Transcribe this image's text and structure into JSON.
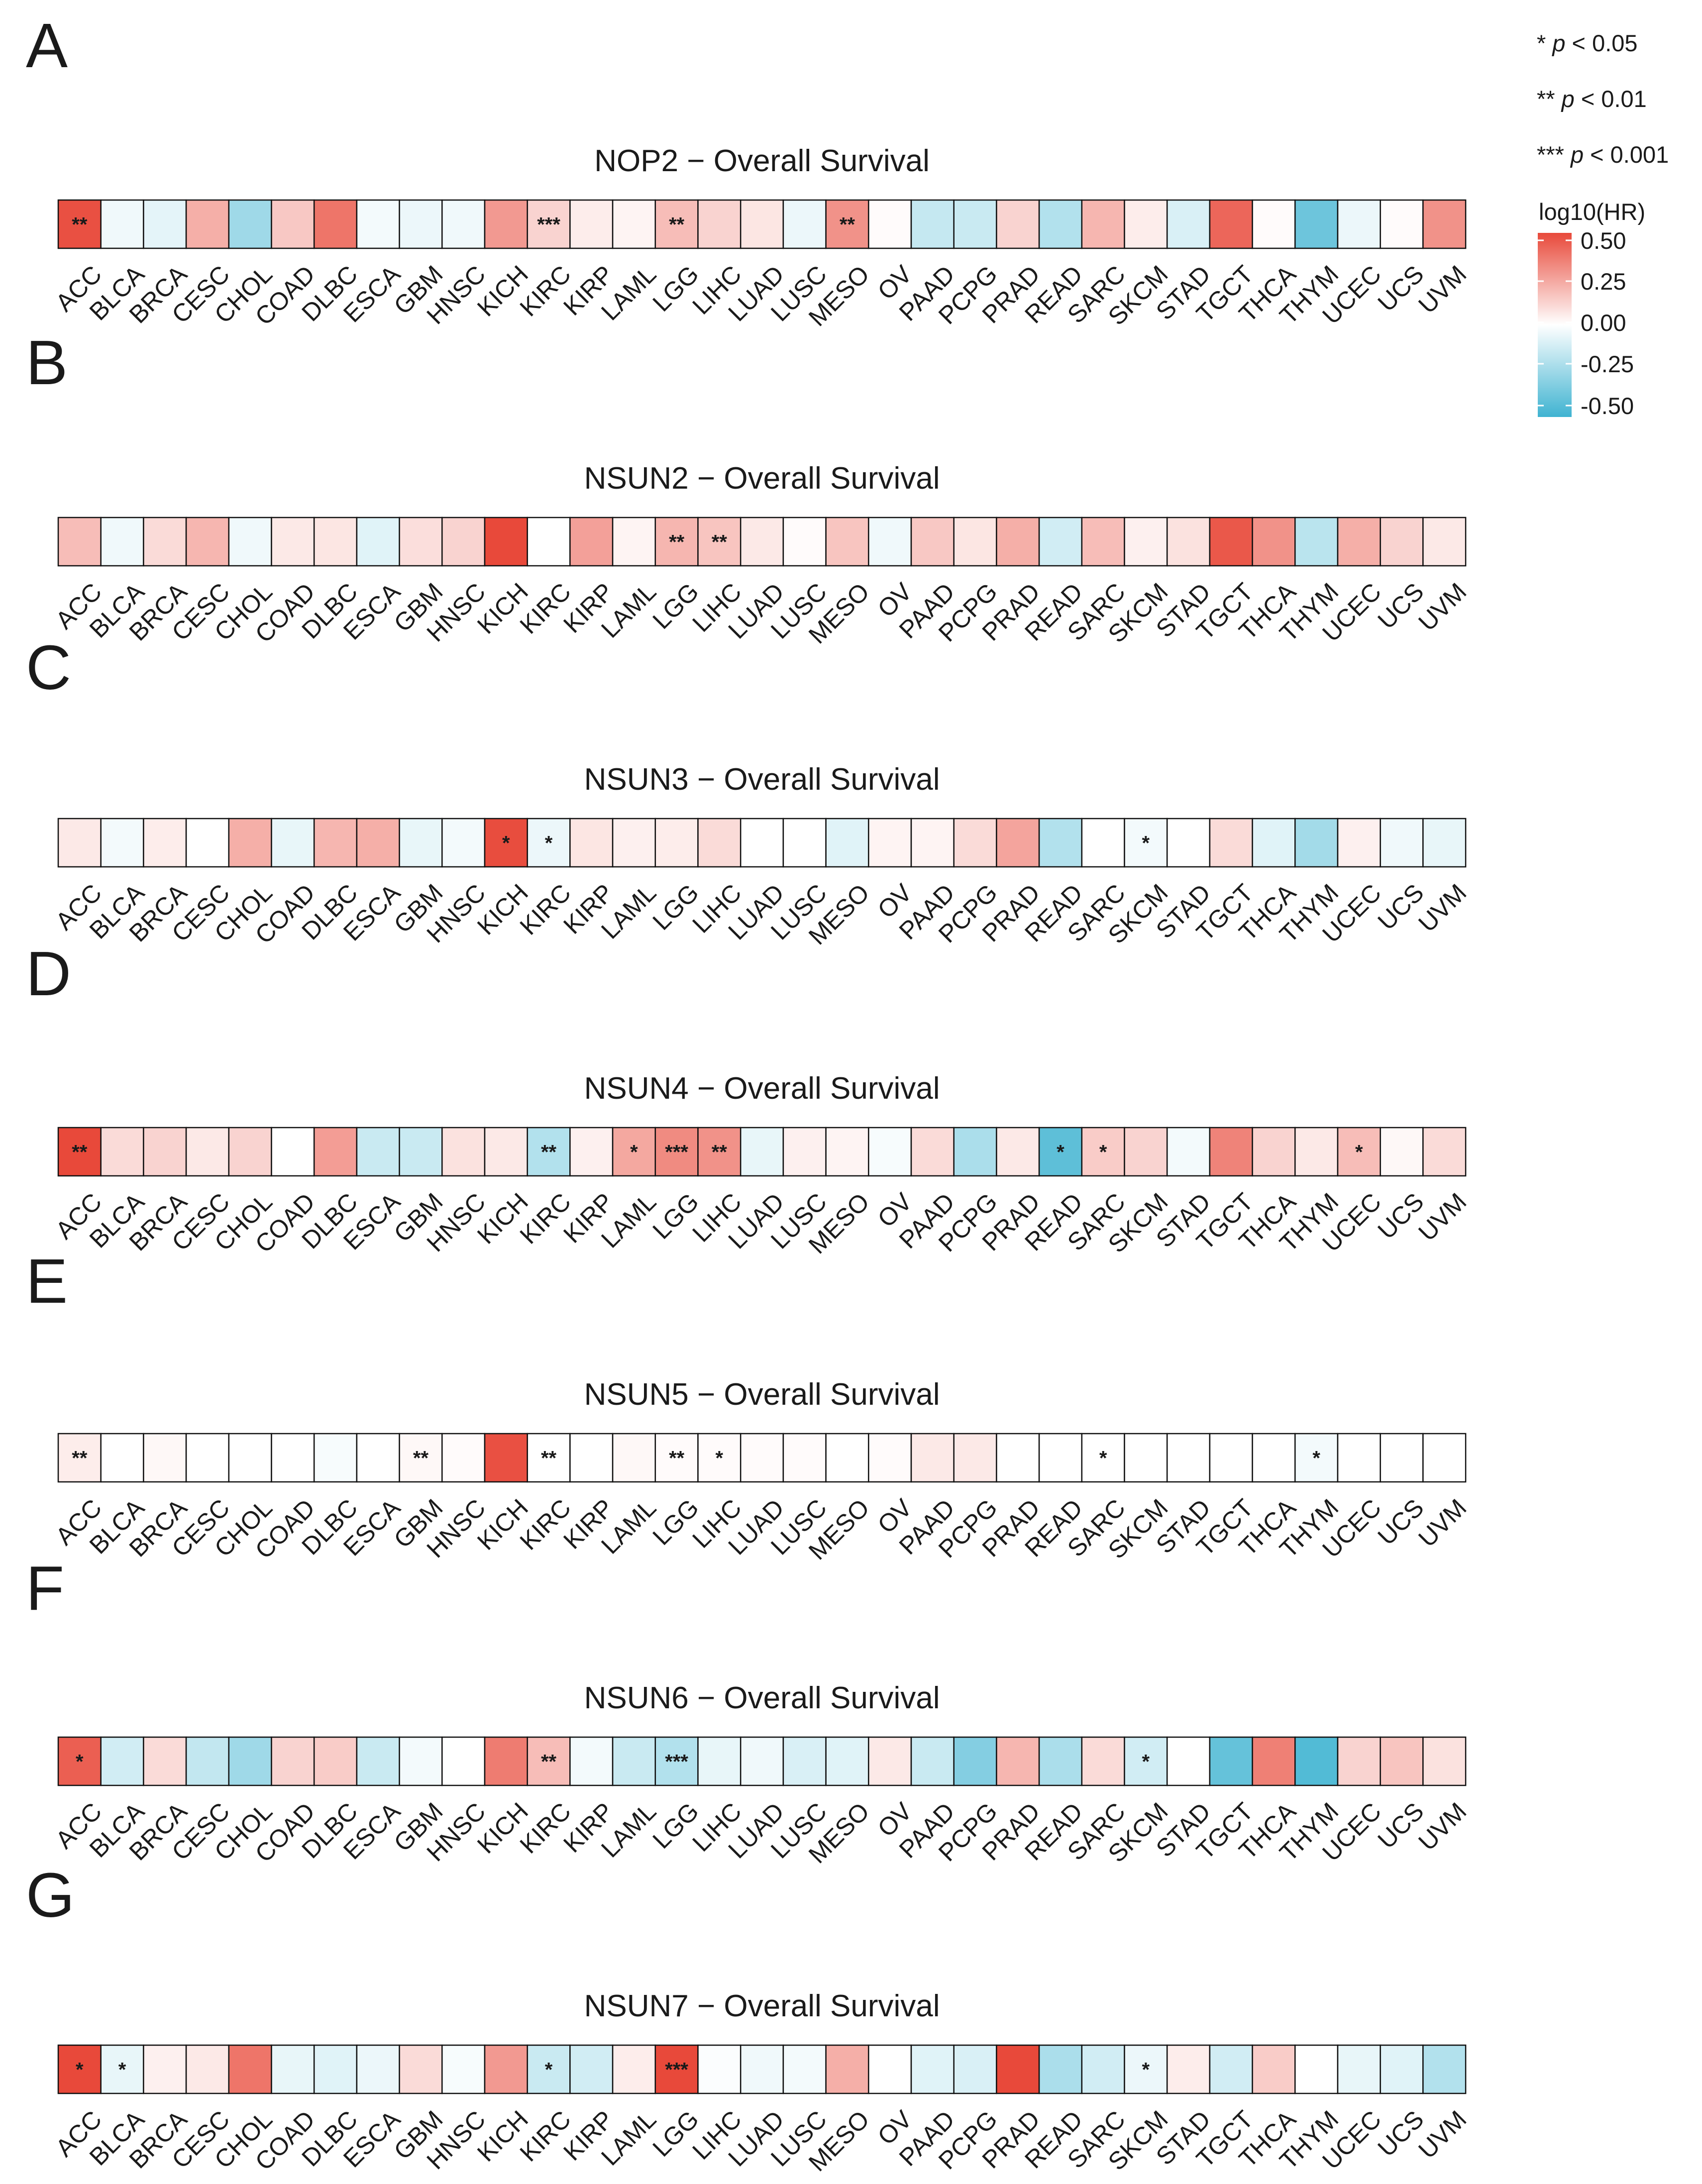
{
  "chart_data": {
    "type": "heatmap",
    "color_scale": {
      "low": "#3fb3d1",
      "mid": "#ffffff",
      "high": "#e8493a",
      "range": [
        -0.5,
        0.5
      ]
    },
    "legend": {
      "title": "log10(HR)",
      "ticks": [
        "0.50",
        "0.25",
        "0.00",
        "-0.25",
        "-0.50"
      ],
      "significance": [
        {
          "stars": "*",
          "label": "p",
          "threshold": "< 0.05"
        },
        {
          "stars": "**",
          "label": "p",
          "threshold": "< 0.01"
        },
        {
          "stars": "***",
          "label": "p",
          "threshold": "< 0.001"
        }
      ]
    },
    "cancers": [
      "ACC",
      "BLCA",
      "BRCA",
      "CESC",
      "CHOL",
      "COAD",
      "DLBC",
      "ESCA",
      "GBM",
      "HNSC",
      "KICH",
      "KIRC",
      "KIRP",
      "LAML",
      "LGG",
      "LIHC",
      "LUAD",
      "LUSC",
      "MESO",
      "OV",
      "PAAD",
      "PCPG",
      "PRAD",
      "READ",
      "SARC",
      "SKCM",
      "STAD",
      "TGCT",
      "THCA",
      "THYM",
      "UCEC",
      "UCS",
      "UVM"
    ],
    "panels": [
      {
        "letter": "A",
        "title": "NOP2 − Overall Survival",
        "values": [
          0.48,
          -0.04,
          -0.07,
          0.22,
          -0.25,
          0.15,
          0.38,
          -0.03,
          -0.05,
          -0.04,
          0.28,
          0.12,
          0.05,
          0.03,
          0.18,
          0.12,
          0.07,
          -0.05,
          0.3,
          0.01,
          -0.15,
          -0.14,
          0.12,
          -0.2,
          0.2,
          0.05,
          -0.1,
          0.42,
          0.01,
          -0.38,
          -0.05,
          0.01,
          0.3
        ],
        "stars": [
          "**",
          "",
          "",
          "",
          "",
          "",
          "",
          "",
          "",
          "",
          "",
          "***",
          "",
          "",
          "**",
          "",
          "",
          "",
          "**",
          "",
          "",
          "",
          "",
          "",
          "",
          "",
          "",
          "",
          "",
          "",
          "",
          "",
          ""
        ]
      },
      {
        "letter": "B",
        "title": "NSUN2 − Overall Survival",
        "values": [
          0.18,
          -0.04,
          0.1,
          0.2,
          -0.04,
          0.06,
          0.07,
          -0.08,
          0.09,
          0.12,
          0.5,
          0.0,
          0.26,
          0.03,
          0.2,
          0.16,
          0.06,
          0.01,
          0.16,
          -0.04,
          0.15,
          0.07,
          0.22,
          -0.12,
          0.18,
          0.04,
          0.08,
          0.46,
          0.3,
          -0.18,
          0.22,
          0.12,
          0.06
        ],
        "stars": [
          "",
          "",
          "",
          "",
          "",
          "",
          "",
          "",
          "",
          "",
          "",
          "",
          "",
          "",
          "**",
          "**",
          "",
          "",
          "",
          "",
          "",
          "",
          "",
          "",
          "",
          "",
          "",
          "",
          "",
          "",
          "",
          "",
          ""
        ]
      },
      {
        "letter": "C",
        "title": "NSUN3 − Overall Survival",
        "values": [
          0.06,
          -0.03,
          0.05,
          0.0,
          0.22,
          -0.06,
          0.2,
          0.22,
          -0.06,
          -0.03,
          0.49,
          -0.05,
          0.07,
          0.04,
          0.05,
          0.1,
          0.0,
          0.0,
          -0.08,
          0.03,
          0.03,
          0.1,
          0.25,
          -0.2,
          0.0,
          -0.03,
          0.0,
          0.1,
          -0.08,
          -0.24,
          0.04,
          -0.04,
          -0.06
        ],
        "stars": [
          "",
          "",
          "",
          "",
          "",
          "",
          "",
          "",
          "",
          "",
          "*",
          "*",
          "",
          "",
          "",
          "",
          "",
          "",
          "",
          "",
          "",
          "",
          "",
          "",
          "",
          "*",
          "",
          "",
          "",
          "",
          "",
          "",
          ""
        ]
      },
      {
        "letter": "D",
        "title": "NSUN4 − Overall Survival",
        "values": [
          0.5,
          0.1,
          0.12,
          0.06,
          0.12,
          0.0,
          0.27,
          -0.14,
          -0.14,
          0.08,
          0.06,
          -0.2,
          0.04,
          0.24,
          0.32,
          0.3,
          -0.06,
          0.04,
          0.03,
          -0.02,
          0.1,
          -0.22,
          0.06,
          -0.42,
          0.14,
          0.12,
          -0.03,
          0.34,
          0.12,
          0.06,
          0.18,
          0.02,
          0.1
        ],
        "stars": [
          "**",
          "",
          "",
          "",
          "",
          "",
          "",
          "",
          "",
          "",
          "",
          "**",
          "",
          "*",
          "***",
          "**",
          "",
          "",
          "",
          "",
          "",
          "",
          "",
          "*",
          "*",
          "",
          "",
          "",
          "",
          "",
          "*",
          "",
          ""
        ]
      },
      {
        "letter": "E",
        "title": "NSUN5 − Overall Survival",
        "values": [
          0.05,
          0.0,
          0.02,
          0.0,
          0.0,
          0.0,
          -0.02,
          0.0,
          0.02,
          0.01,
          0.48,
          0.0,
          0.0,
          0.02,
          0.01,
          0.01,
          0.01,
          0.01,
          0.0,
          0.01,
          0.06,
          0.06,
          0.0,
          0.0,
          0.0,
          0.0,
          0.0,
          0.0,
          0.0,
          -0.03,
          0.0,
          0.0,
          0.0
        ],
        "stars": [
          "**",
          "",
          "",
          "",
          "",
          "",
          "",
          "",
          "**",
          "",
          "",
          "**",
          "",
          "",
          "**",
          "*",
          "",
          "",
          "",
          "",
          "",
          "",
          "",
          "",
          "*",
          "",
          "",
          "",
          "",
          "*",
          "",
          "",
          ""
        ]
      },
      {
        "letter": "F",
        "title": "NSUN6 − Overall Survival",
        "values": [
          0.44,
          -0.12,
          0.1,
          -0.16,
          -0.25,
          0.12,
          0.14,
          -0.14,
          -0.03,
          0.0,
          0.36,
          0.18,
          -0.03,
          -0.14,
          -0.2,
          -0.06,
          -0.04,
          -0.1,
          -0.08,
          0.06,
          -0.14,
          -0.32,
          0.2,
          -0.22,
          0.1,
          -0.12,
          0.0,
          -0.4,
          0.35,
          -0.45,
          0.12,
          0.16,
          0.08
        ],
        "stars": [
          "*",
          "",
          "",
          "",
          "",
          "",
          "",
          "",
          "",
          "",
          "",
          "**",
          "",
          "",
          "***",
          "",
          "",
          "",
          "",
          "",
          "",
          "",
          "",
          "",
          "",
          "*",
          "",
          "",
          "",
          "",
          "",
          "",
          ""
        ]
      },
      {
        "letter": "G",
        "title": "NSUN7 − Overall Survival",
        "values": [
          0.5,
          -0.06,
          0.04,
          0.06,
          0.38,
          -0.06,
          -0.08,
          -0.05,
          0.1,
          -0.02,
          0.28,
          -0.14,
          -0.12,
          0.05,
          0.52,
          -0.01,
          -0.04,
          -0.03,
          0.22,
          0.0,
          -0.08,
          -0.1,
          0.55,
          -0.22,
          -0.12,
          -0.05,
          0.05,
          -0.12,
          0.14,
          0.0,
          -0.06,
          -0.08,
          -0.2
        ],
        "stars": [
          "*",
          "*",
          "",
          "",
          "",
          "",
          "",
          "",
          "",
          "",
          "",
          "*",
          "",
          "",
          "***",
          "",
          "",
          "",
          "",
          "",
          "",
          "",
          "",
          "",
          "",
          "*",
          "",
          "",
          "",
          "",
          "",
          "",
          ""
        ]
      }
    ],
    "x_range": "cancer types",
    "xlabel": "",
    "ylabel": ""
  }
}
